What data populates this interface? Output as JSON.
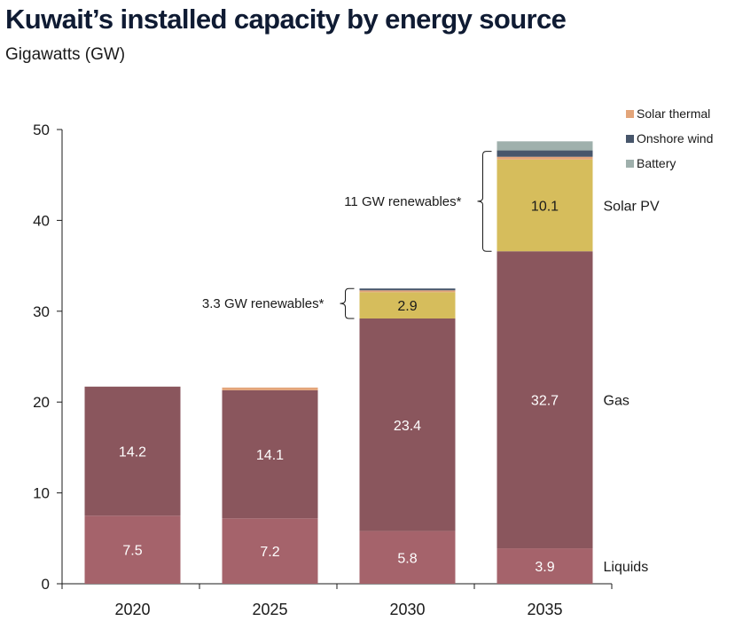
{
  "header": {
    "title": "Kuwait’s installed capacity by energy source",
    "subtitle": "Gigawatts (GW)"
  },
  "chart_data": {
    "type": "bar",
    "stacked": true,
    "title": "Kuwait’s installed capacity by energy source",
    "subtitle": "Gigawatts (GW)",
    "xlabel": "",
    "ylabel": "Gigawatts (GW)",
    "ylim": [
      0,
      50
    ],
    "yticks": [
      0,
      10,
      20,
      30,
      40,
      50
    ],
    "grid": false,
    "categories": [
      "2020",
      "2025",
      "2030",
      "2035"
    ],
    "series": [
      {
        "name": "Liquids",
        "color": "#a5636b",
        "label_color": "#ffffff",
        "values": [
          7.5,
          7.2,
          5.8,
          3.9
        ],
        "labels": [
          "7.5",
          "7.2",
          "5.8",
          "3.9"
        ]
      },
      {
        "name": "Gas",
        "color": "#8a565d",
        "label_color": "#ffffff",
        "values": [
          14.2,
          14.1,
          23.4,
          32.7
        ],
        "labels": [
          "14.2",
          "14.1",
          "23.4",
          "32.7"
        ]
      },
      {
        "name": "Solar PV",
        "color": "#d6bd5c",
        "label_color": "#1a1a1a",
        "values": [
          0,
          0,
          2.9,
          10.1
        ],
        "labels": [
          "",
          "",
          "2.9",
          "10.1"
        ]
      },
      {
        "name": "Solar thermal",
        "color": "#e3a57a",
        "label_color": "#1a1a1a",
        "values": [
          0,
          0.3,
          0.2,
          0.3
        ],
        "labels": [
          "",
          "",
          "",
          ""
        ]
      },
      {
        "name": "Onshore wind",
        "color": "#47566b",
        "label_color": "#ffffff",
        "values": [
          0,
          0,
          0.2,
          0.7
        ],
        "labels": [
          "",
          "",
          "",
          ""
        ]
      },
      {
        "name": "Battery",
        "color": "#9fb0ac",
        "label_color": "#1a1a1a",
        "values": [
          0,
          0,
          0,
          1.0
        ],
        "labels": [
          "",
          "",
          "",
          ""
        ]
      }
    ],
    "side_labels": [
      {
        "text": "Solar PV",
        "series": "Solar PV"
      },
      {
        "text": "Gas",
        "series": "Gas"
      },
      {
        "text": "Liquids",
        "series": "Liquids"
      }
    ],
    "legend": {
      "placement": "top-right",
      "entries": [
        {
          "name": "Solar thermal",
          "color": "#e3a57a"
        },
        {
          "name": "Onshore wind",
          "color": "#47566b"
        },
        {
          "name": "Battery",
          "color": "#9fb0ac"
        }
      ]
    },
    "annotations": [
      {
        "category": "2030",
        "text": "3.3 GW renewables*",
        "from": 29.2,
        "to": 32.5
      },
      {
        "category": "2035",
        "text": "11 GW renewables*",
        "from": 36.6,
        "to": 47.6
      }
    ]
  }
}
